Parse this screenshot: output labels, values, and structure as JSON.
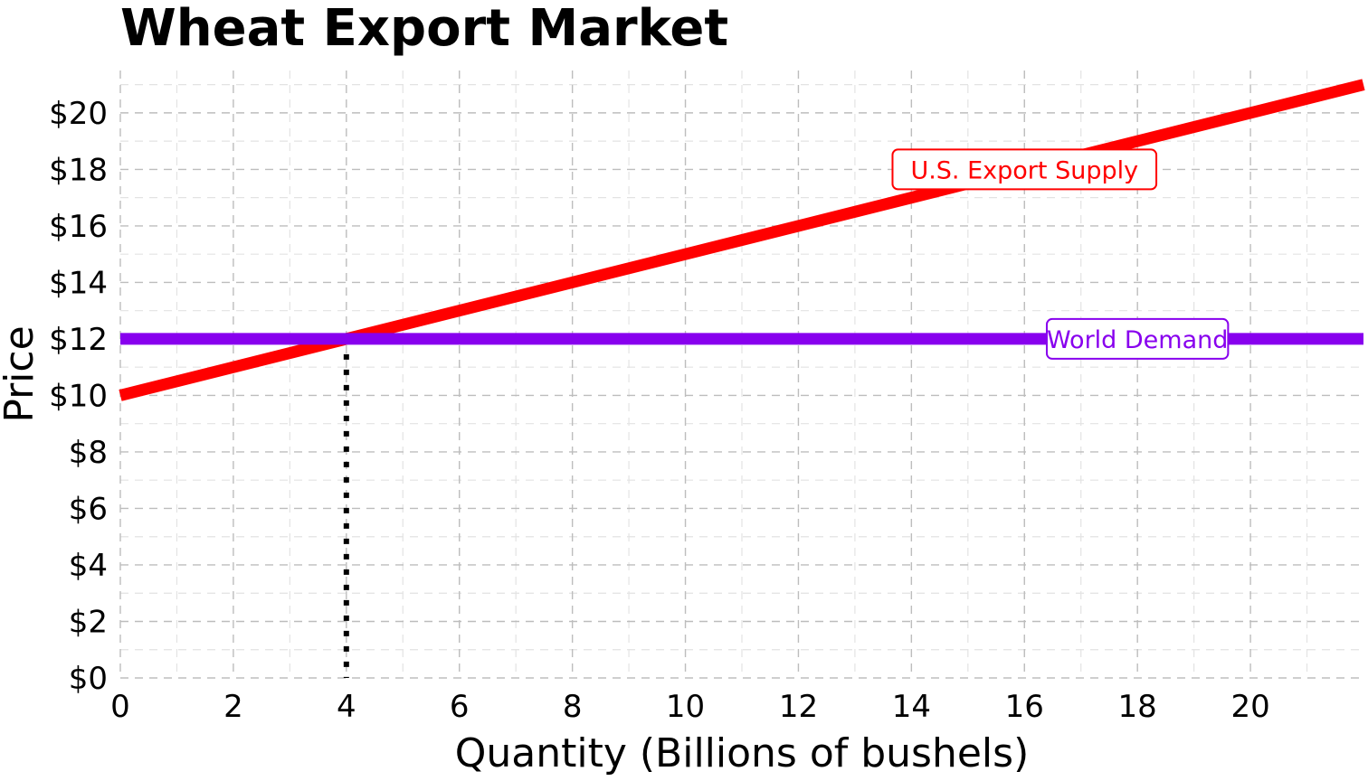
{
  "chart_data": {
    "type": "line",
    "title": "Wheat Export Market",
    "xlabel": "Quantity (Billions of bushels)",
    "ylabel": "Price",
    "xlim": [
      0,
      22
    ],
    "ylim": [
      0,
      21.5
    ],
    "x_ticks": [
      0,
      2,
      4,
      6,
      8,
      10,
      12,
      14,
      16,
      18,
      20
    ],
    "y_ticks": [
      0,
      2,
      4,
      6,
      8,
      10,
      12,
      14,
      16,
      18,
      20
    ],
    "x_tick_labels": [
      "0",
      "2",
      "4",
      "6",
      "8",
      "10",
      "12",
      "14",
      "16",
      "18",
      "20"
    ],
    "y_tick_labels": [
      "$0",
      "$2",
      "$4",
      "$6",
      "$8",
      "$10",
      "$12",
      "$14",
      "$16",
      "$18",
      "$20"
    ],
    "grid": true,
    "series": [
      {
        "name": "U.S. Export Supply",
        "color": "#ff0000",
        "x": [
          0,
          22
        ],
        "y": [
          10,
          21
        ]
      },
      {
        "name": "World Demand",
        "color": "#8800ee",
        "x": [
          0,
          22
        ],
        "y": [
          12,
          12
        ]
      }
    ],
    "annotations": [
      {
        "text": "U.S. Export Supply",
        "series": 0,
        "x": 16,
        "y": 18,
        "color": "#ff0000"
      },
      {
        "text": "World Demand",
        "series": 1,
        "x": 18,
        "y": 12,
        "color": "#8800ee"
      }
    ],
    "reference_lines": [
      {
        "type": "vertical-dotted",
        "x": 4,
        "y_from": 0,
        "y_to": 12,
        "color": "#000000"
      }
    ]
  }
}
